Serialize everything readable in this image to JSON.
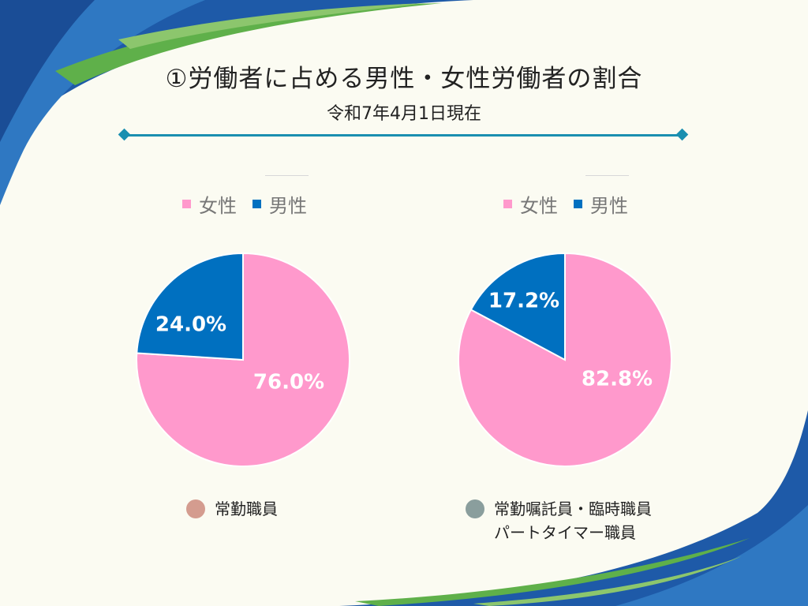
{
  "title": "①労働者に占める男性・女性労働者の割合",
  "subtitle": "令和7年4月1日現在",
  "colors": {
    "female": "#ff99cc",
    "male": "#0070c0",
    "accent": "#1a8fb0",
    "caption_left": "#d49c8f",
    "caption_right": "#8a9e9d"
  },
  "chart_data": [
    {
      "type": "pie",
      "legend": [
        "女性",
        "男性"
      ],
      "labels": [
        "女性",
        "男性"
      ],
      "values": [
        76.0,
        24.0
      ],
      "value_labels": [
        "76.0%",
        "24.0%"
      ],
      "legend_position": "top",
      "caption": [
        "常勤職員"
      ]
    },
    {
      "type": "pie",
      "legend": [
        "女性",
        "男性"
      ],
      "labels": [
        "女性",
        "男性"
      ],
      "values": [
        82.8,
        17.2
      ],
      "value_labels": [
        "82.8%",
        "17.2%"
      ],
      "legend_position": "top",
      "caption": [
        "常勤嘱託員・臨時職員",
        "パートタイマー職員"
      ]
    }
  ]
}
